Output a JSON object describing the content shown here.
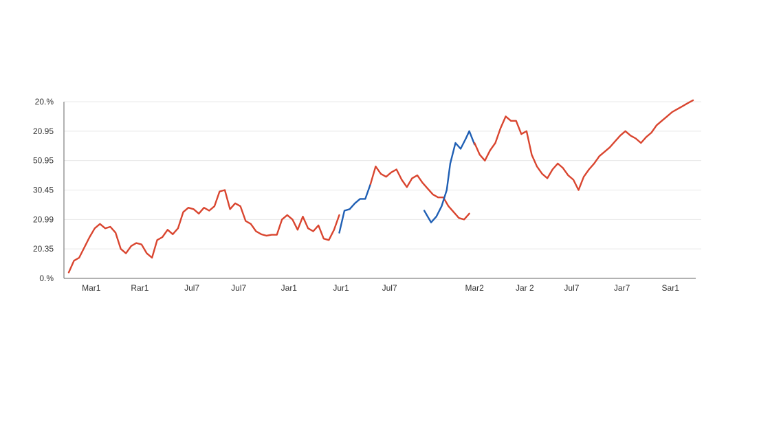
{
  "chart_data": {
    "type": "line",
    "title": "",
    "xlabel": "",
    "ylabel": "",
    "ylim": [
      0,
      6
    ],
    "grid": true,
    "y_tick_labels": [
      "0.%",
      "20.35",
      "20.99",
      "30.45",
      "50.95",
      "20.95",
      "20.%"
    ],
    "x_tick_labels": [
      "Mar1",
      "Rar1",
      "Jul7",
      "Jul7",
      "Jar1",
      "Jur1",
      "Jul7",
      "Mar2",
      "Jar 2",
      "Jul7",
      "Jar7",
      "Sar1"
    ],
    "x_tick_positions": [
      1.3,
      4.1,
      7.1,
      9.8,
      12.7,
      15.7,
      18.5,
      23.4,
      26.3,
      29.0,
      31.9,
      34.7
    ],
    "xlim": [
      0,
      36
    ],
    "series": [
      {
        "color": "#d9452f",
        "x": [
          0,
          0.3,
          0.6,
          0.9,
          1.2,
          1.5,
          1.8,
          2.1,
          2.4,
          2.7,
          3.0,
          3.3,
          3.6,
          3.9,
          4.2,
          4.5,
          4.8,
          5.1,
          5.4,
          5.7,
          6.0,
          6.3,
          6.6,
          6.9,
          7.2,
          7.5,
          7.8,
          8.1,
          8.4,
          8.7,
          9.0,
          9.3,
          9.6,
          9.9,
          10.2,
          10.5,
          10.8,
          11.1,
          11.4,
          11.7,
          12.0,
          12.3,
          12.6,
          12.9,
          13.2,
          13.5,
          13.8,
          14.1,
          14.4,
          14.7,
          15.0,
          15.3,
          15.6
        ],
        "y": [
          0.2,
          0.6,
          0.7,
          1.05,
          1.4,
          1.7,
          1.85,
          1.7,
          1.75,
          1.55,
          1.0,
          0.85,
          1.1,
          1.2,
          1.15,
          0.85,
          0.7,
          1.3,
          1.4,
          1.65,
          1.5,
          1.7,
          2.25,
          2.4,
          2.35,
          2.2,
          2.4,
          2.3,
          2.45,
          2.95,
          3.0,
          2.35,
          2.55,
          2.45,
          1.95,
          1.85,
          1.6,
          1.5,
          1.45,
          1.48,
          1.48,
          2.0,
          2.15,
          2.0,
          1.65,
          2.1,
          1.7,
          1.6,
          1.8,
          1.35,
          1.3,
          1.65,
          2.15
        ]
      },
      {
        "color": "#1f5fb4",
        "x": [
          15.6,
          15.9,
          16.2,
          16.5,
          16.8,
          17.1,
          17.4
        ],
        "y": [
          1.55,
          2.3,
          2.35,
          2.55,
          2.7,
          2.7,
          3.2
        ]
      },
      {
        "color": "#d9452f",
        "x": [
          17.4,
          17.7,
          18.0,
          18.3,
          18.6,
          18.9,
          19.2,
          19.5,
          19.8,
          20.1,
          20.4,
          20.7,
          21.0,
          21.3,
          21.6,
          21.9,
          22.2,
          22.5,
          22.8,
          23.1
        ],
        "y": [
          3.2,
          3.8,
          3.55,
          3.45,
          3.6,
          3.7,
          3.35,
          3.1,
          3.4,
          3.5,
          3.25,
          3.05,
          2.85,
          2.75,
          2.75,
          2.45,
          2.25,
          2.05,
          2.0,
          2.2
        ]
      },
      {
        "color": "#1f5fb4",
        "x": [
          20.5,
          20.7,
          20.9,
          21.2,
          21.5,
          21.8,
          22.0,
          22.3,
          22.6,
          22.9,
          23.1,
          23.4
        ],
        "y": [
          2.3,
          2.1,
          1.9,
          2.1,
          2.45,
          3.0,
          3.9,
          4.6,
          4.4,
          4.75,
          5.0,
          4.55
        ]
      },
      {
        "color": "#d9452f",
        "x": [
          23.4,
          23.7,
          24.0,
          24.3,
          24.6,
          24.9,
          25.2,
          25.5,
          25.8,
          26.1,
          26.4,
          26.7,
          27.0,
          27.3,
          27.6,
          27.9,
          28.2,
          28.5,
          28.8,
          29.1,
          29.4,
          29.7,
          30.0,
          30.3,
          30.6,
          30.9,
          31.2,
          31.5,
          31.8,
          32.1,
          32.4,
          32.7,
          33.0,
          33.3,
          33.6,
          33.9,
          34.2,
          34.5,
          34.8,
          35.1,
          35.4,
          35.7,
          36.0
        ],
        "y": [
          4.6,
          4.2,
          4.0,
          4.35,
          4.6,
          5.1,
          5.5,
          5.35,
          5.35,
          4.9,
          5.0,
          4.2,
          3.8,
          3.55,
          3.4,
          3.7,
          3.9,
          3.75,
          3.5,
          3.35,
          3.0,
          3.45,
          3.7,
          3.9,
          4.15,
          4.3,
          4.45,
          4.65,
          4.85,
          5.0,
          4.85,
          4.75,
          4.6,
          4.8,
          4.95,
          5.2,
          5.35,
          5.5,
          5.65,
          5.75,
          5.85,
          5.95,
          6.05
        ]
      }
    ]
  }
}
